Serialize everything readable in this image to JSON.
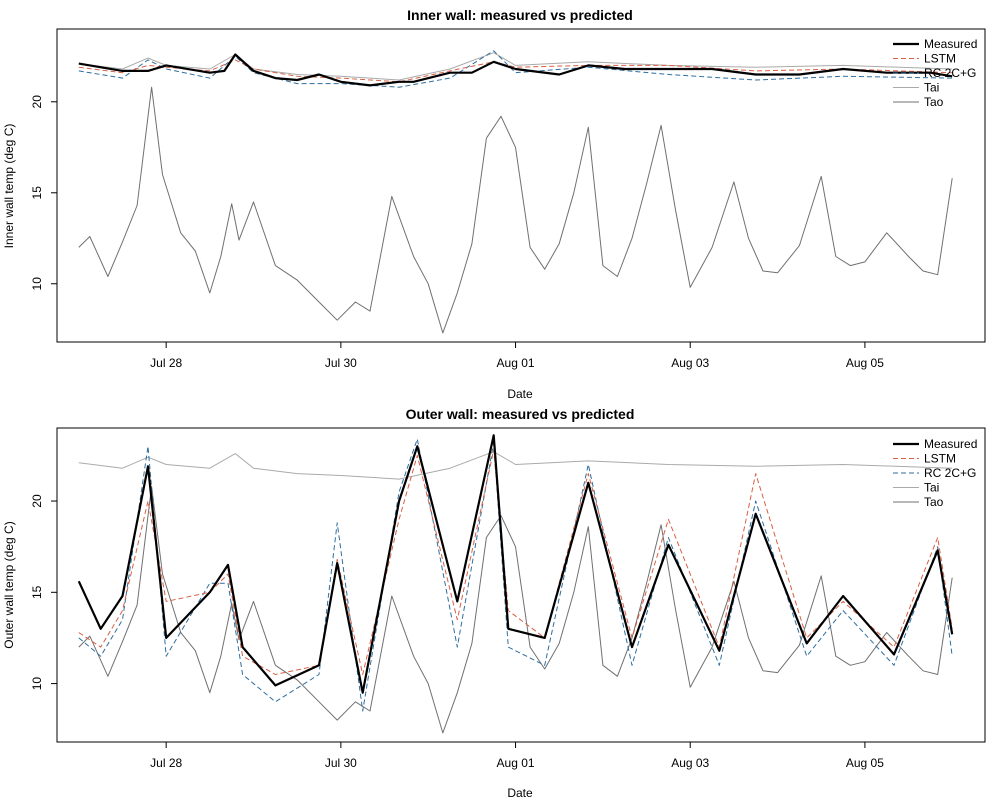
{
  "chart_data": [
    {
      "type": "line",
      "title": "Inner wall: measured vs predicted",
      "xlabel": "Date",
      "ylabel": "Inner wall temp (deg C)",
      "xlim": [
        "2019-07-26T18:00",
        "2019-08-06T09:00"
      ],
      "ylim": [
        6.8,
        24.0
      ],
      "yticks": [
        10,
        15,
        20
      ],
      "xticks": [
        {
          "date": "2019-07-28",
          "label": "Jul 28"
        },
        {
          "date": "2019-07-30",
          "label": "Jul 30"
        },
        {
          "date": "2019-08-01",
          "label": "Aug 01"
        },
        {
          "date": "2019-08-03",
          "label": "Aug 03"
        },
        {
          "date": "2019-08-05",
          "label": "Aug 05"
        }
      ],
      "grid": false,
      "legend_position": "top-right",
      "series": [
        {
          "name": "Measured",
          "color": "#000000",
          "style": "solid-thick",
          "x": [
            "2019-07-27T00:00",
            "2019-07-27T12:00",
            "2019-07-27T19:00",
            "2019-07-28T00:00",
            "2019-07-28T12:00",
            "2019-07-28T16:00",
            "2019-07-28T19:00",
            "2019-07-29T00:00",
            "2019-07-29T06:00",
            "2019-07-29T12:00",
            "2019-07-29T18:00",
            "2019-07-30T00:00",
            "2019-07-30T08:00",
            "2019-07-30T16:00",
            "2019-07-30T20:00",
            "2019-07-31T06:00",
            "2019-07-31T12:00",
            "2019-07-31T18:00",
            "2019-08-01T00:00",
            "2019-08-01T12:00",
            "2019-08-01T20:00",
            "2019-08-02T06:00",
            "2019-08-02T18:00",
            "2019-08-03T06:00",
            "2019-08-03T18:00",
            "2019-08-04T06:00",
            "2019-08-04T18:00",
            "2019-08-05T06:00",
            "2019-08-05T18:00",
            "2019-08-06T00:00"
          ],
          "y": [
            22.1,
            21.7,
            21.7,
            22.0,
            21.6,
            21.7,
            22.6,
            21.7,
            21.3,
            21.2,
            21.5,
            21.1,
            20.9,
            21.1,
            21.1,
            21.6,
            21.6,
            22.2,
            21.8,
            21.5,
            22.0,
            21.8,
            21.8,
            21.8,
            21.5,
            21.5,
            21.8,
            21.6,
            21.6,
            21.4
          ]
        },
        {
          "name": "LSTM",
          "color": "#D95F43",
          "style": "dashed",
          "x": [
            "2019-07-27T00:00",
            "2019-07-27T12:00",
            "2019-07-27T19:00",
            "2019-07-28T00:00",
            "2019-07-28T12:00",
            "2019-07-28T19:00",
            "2019-07-29T00:00",
            "2019-07-29T12:00",
            "2019-07-30T00:00",
            "2019-07-30T16:00",
            "2019-07-31T06:00",
            "2019-07-31T18:00",
            "2019-08-01T00:00",
            "2019-08-01T20:00",
            "2019-08-02T18:00",
            "2019-08-03T18:00",
            "2019-08-04T18:00",
            "2019-08-06T00:00"
          ],
          "y": [
            21.9,
            21.6,
            22.0,
            21.9,
            21.7,
            22.3,
            21.8,
            21.4,
            21.3,
            21.1,
            21.7,
            22.2,
            21.9,
            22.0,
            22.0,
            21.7,
            21.8,
            21.6
          ]
        },
        {
          "name": "RC 2C+G",
          "color": "#2E6E9E",
          "style": "dashed",
          "x": [
            "2019-07-27T00:00",
            "2019-07-27T12:00",
            "2019-07-27T19:00",
            "2019-07-28T00:00",
            "2019-07-28T12:00",
            "2019-07-28T19:00",
            "2019-07-29T00:00",
            "2019-07-29T12:00",
            "2019-07-30T00:00",
            "2019-07-30T16:00",
            "2019-07-31T06:00",
            "2019-07-31T18:00",
            "2019-08-01T00:00",
            "2019-08-01T20:00",
            "2019-08-02T18:00",
            "2019-08-03T18:00",
            "2019-08-04T18:00",
            "2019-08-06T00:00"
          ],
          "y": [
            21.7,
            21.3,
            22.3,
            21.8,
            21.3,
            22.5,
            21.6,
            21.0,
            21.0,
            20.8,
            21.3,
            22.8,
            21.6,
            21.9,
            21.5,
            21.2,
            21.4,
            21.3
          ]
        },
        {
          "name": "Tai",
          "color": "#AAAAAA",
          "style": "solid",
          "x": [
            "2019-07-27T00:00",
            "2019-07-27T12:00",
            "2019-07-27T19:00",
            "2019-07-28T00:00",
            "2019-07-28T12:00",
            "2019-07-28T19:00",
            "2019-07-29T00:00",
            "2019-07-29T12:00",
            "2019-07-30T00:00",
            "2019-07-30T16:00",
            "2019-07-31T06:00",
            "2019-07-31T18:00",
            "2019-08-01T00:00",
            "2019-08-01T20:00",
            "2019-08-02T18:00",
            "2019-08-03T18:00",
            "2019-08-04T18:00",
            "2019-08-06T00:00"
          ],
          "y": [
            22.1,
            21.8,
            22.4,
            22.0,
            21.8,
            22.6,
            21.8,
            21.5,
            21.4,
            21.2,
            21.8,
            22.7,
            22.0,
            22.2,
            22.0,
            21.9,
            22.0,
            21.8
          ]
        },
        {
          "name": "Tao",
          "color": "#707070",
          "style": "solid",
          "x": [
            "2019-07-27T00:00",
            "2019-07-27T03:00",
            "2019-07-27T08:00",
            "2019-07-27T12:00",
            "2019-07-27T16:00",
            "2019-07-27T20:00",
            "2019-07-27T23:00",
            "2019-07-28T04:00",
            "2019-07-28T08:00",
            "2019-07-28T12:00",
            "2019-07-28T15:00",
            "2019-07-28T18:00",
            "2019-07-28T20:00",
            "2019-07-29T00:00",
            "2019-07-29T06:00",
            "2019-07-29T12:00",
            "2019-07-29T18:00",
            "2019-07-29T23:00",
            "2019-07-30T04:00",
            "2019-07-30T08:00",
            "2019-07-30T14:00",
            "2019-07-30T20:00",
            "2019-07-31T00:00",
            "2019-07-31T04:00",
            "2019-07-31T08:00",
            "2019-07-31T12:00",
            "2019-07-31T16:00",
            "2019-07-31T20:00",
            "2019-08-01T00:00",
            "2019-08-01T04:00",
            "2019-08-01T08:00",
            "2019-08-01T12:00",
            "2019-08-01T16:00",
            "2019-08-01T20:00",
            "2019-08-02T00:00",
            "2019-08-02T04:00",
            "2019-08-02T08:00",
            "2019-08-02T12:00",
            "2019-08-02T16:00",
            "2019-08-02T20:00",
            "2019-08-03T00:00",
            "2019-08-03T06:00",
            "2019-08-03T12:00",
            "2019-08-03T16:00",
            "2019-08-03T20:00",
            "2019-08-04T00:00",
            "2019-08-04T06:00",
            "2019-08-04T12:00",
            "2019-08-04T16:00",
            "2019-08-04T20:00",
            "2019-08-05T00:00",
            "2019-08-05T06:00",
            "2019-08-05T12:00",
            "2019-08-05T16:00",
            "2019-08-05T20:00",
            "2019-08-06T00:00"
          ],
          "y": [
            12.0,
            12.6,
            10.4,
            12.3,
            14.3,
            20.8,
            16.0,
            12.8,
            11.8,
            9.5,
            11.5,
            14.4,
            12.4,
            14.5,
            11.0,
            10.2,
            9.0,
            8.0,
            9.0,
            8.5,
            14.8,
            11.5,
            10.0,
            7.3,
            9.5,
            12.2,
            18.0,
            19.2,
            17.5,
            12.0,
            10.8,
            12.2,
            15.0,
            18.6,
            11.0,
            10.4,
            12.5,
            15.5,
            18.7,
            14.0,
            9.8,
            12.0,
            15.6,
            12.5,
            10.7,
            10.6,
            12.1,
            15.9,
            11.5,
            11.0,
            11.2,
            12.8,
            11.5,
            10.7,
            10.5,
            15.8
          ]
        }
      ]
    },
    {
      "type": "line",
      "title": "Outer wall: measured vs predicted",
      "xlabel": "Date",
      "ylabel": "Outer wall temp (deg C)",
      "xlim": [
        "2019-07-26T18:00",
        "2019-08-06T09:00"
      ],
      "ylim": [
        6.8,
        24.0
      ],
      "yticks": [
        10,
        15,
        20
      ],
      "xticks": [
        {
          "date": "2019-07-28",
          "label": "Jul 28"
        },
        {
          "date": "2019-07-30",
          "label": "Jul 30"
        },
        {
          "date": "2019-08-01",
          "label": "Aug 01"
        },
        {
          "date": "2019-08-03",
          "label": "Aug 03"
        },
        {
          "date": "2019-08-05",
          "label": "Aug 05"
        }
      ],
      "grid": false,
      "legend_position": "top-right",
      "series": [
        {
          "name": "Measured",
          "color": "#000000",
          "style": "solid-thick",
          "x": [
            "2019-07-27T00:00",
            "2019-07-27T06:00",
            "2019-07-27T12:00",
            "2019-07-27T19:00",
            "2019-07-28T00:00",
            "2019-07-28T12:00",
            "2019-07-28T17:00",
            "2019-07-28T21:00",
            "2019-07-29T06:00",
            "2019-07-29T18:00",
            "2019-07-29T23:00",
            "2019-07-30T06:00",
            "2019-07-30T16:00",
            "2019-07-30T21:00",
            "2019-07-31T08:00",
            "2019-07-31T18:00",
            "2019-07-31T22:00",
            "2019-08-01T08:00",
            "2019-08-01T20:00",
            "2019-08-02T08:00",
            "2019-08-02T18:00",
            "2019-08-03T08:00",
            "2019-08-03T18:00",
            "2019-08-04T08:00",
            "2019-08-04T18:00",
            "2019-08-05T08:00",
            "2019-08-05T20:00",
            "2019-08-06T00:00"
          ],
          "y": [
            15.6,
            13.0,
            14.8,
            21.9,
            12.5,
            15.0,
            16.5,
            12.0,
            9.9,
            11.0,
            16.6,
            9.5,
            20.0,
            23.0,
            14.5,
            23.6,
            13.0,
            12.5,
            21.0,
            12.0,
            17.6,
            11.8,
            19.3,
            12.2,
            14.8,
            11.6,
            17.3,
            12.7
          ]
        },
        {
          "name": "LSTM",
          "color": "#D95F43",
          "style": "dashed",
          "x": [
            "2019-07-27T00:00",
            "2019-07-27T06:00",
            "2019-07-27T12:00",
            "2019-07-27T19:00",
            "2019-07-28T00:00",
            "2019-07-28T12:00",
            "2019-07-28T17:00",
            "2019-07-28T21:00",
            "2019-07-29T06:00",
            "2019-07-29T18:00",
            "2019-07-29T23:00",
            "2019-07-30T06:00",
            "2019-07-30T16:00",
            "2019-07-30T21:00",
            "2019-07-31T08:00",
            "2019-07-31T18:00",
            "2019-07-31T22:00",
            "2019-08-01T08:00",
            "2019-08-01T20:00",
            "2019-08-02T08:00",
            "2019-08-02T18:00",
            "2019-08-03T08:00",
            "2019-08-03T18:00",
            "2019-08-04T08:00",
            "2019-08-04T18:00",
            "2019-08-05T08:00",
            "2019-08-05T20:00",
            "2019-08-06T00:00"
          ],
          "y": [
            12.8,
            12.0,
            14.0,
            20.0,
            14.5,
            15.0,
            16.0,
            11.5,
            10.5,
            11.0,
            16.8,
            10.5,
            19.0,
            22.5,
            13.5,
            22.8,
            14.0,
            12.5,
            21.5,
            12.5,
            19.0,
            12.0,
            21.5,
            12.5,
            14.5,
            12.0,
            18.0,
            13.0
          ]
        },
        {
          "name": "RC 2C+G",
          "color": "#2E6E9E",
          "style": "dashed",
          "x": [
            "2019-07-27T00:00",
            "2019-07-27T06:00",
            "2019-07-27T12:00",
            "2019-07-27T19:00",
            "2019-07-28T00:00",
            "2019-07-28T12:00",
            "2019-07-28T17:00",
            "2019-07-28T21:00",
            "2019-07-29T06:00",
            "2019-07-29T18:00",
            "2019-07-29T23:00",
            "2019-07-30T06:00",
            "2019-07-30T16:00",
            "2019-07-30T21:00",
            "2019-07-31T08:00",
            "2019-07-31T18:00",
            "2019-07-31T22:00",
            "2019-08-01T08:00",
            "2019-08-01T20:00",
            "2019-08-02T08:00",
            "2019-08-02T18:00",
            "2019-08-03T08:00",
            "2019-08-03T18:00",
            "2019-08-04T08:00",
            "2019-08-04T18:00",
            "2019-08-05T08:00",
            "2019-08-05T20:00",
            "2019-08-06T00:00"
          ],
          "y": [
            12.5,
            11.5,
            13.5,
            23.0,
            11.5,
            15.5,
            15.5,
            10.5,
            9.0,
            10.5,
            18.8,
            8.5,
            20.5,
            23.4,
            12.0,
            23.2,
            12.0,
            11.0,
            22.0,
            11.0,
            18.0,
            11.0,
            20.0,
            11.5,
            14.0,
            11.0,
            17.5,
            11.5
          ]
        },
        {
          "name": "Tai",
          "color": "#AAAAAA",
          "style": "solid",
          "x": [
            "2019-07-27T00:00",
            "2019-07-27T12:00",
            "2019-07-27T19:00",
            "2019-07-28T00:00",
            "2019-07-28T12:00",
            "2019-07-28T19:00",
            "2019-07-29T00:00",
            "2019-07-29T12:00",
            "2019-07-30T00:00",
            "2019-07-30T16:00",
            "2019-07-31T06:00",
            "2019-07-31T18:00",
            "2019-08-01T00:00",
            "2019-08-01T20:00",
            "2019-08-02T18:00",
            "2019-08-03T18:00",
            "2019-08-04T18:00",
            "2019-08-06T00:00"
          ],
          "y": [
            22.1,
            21.8,
            22.4,
            22.0,
            21.8,
            22.6,
            21.8,
            21.5,
            21.4,
            21.2,
            21.8,
            22.7,
            22.0,
            22.2,
            22.0,
            21.9,
            22.0,
            21.8
          ]
        },
        {
          "name": "Tao",
          "color": "#707070",
          "style": "solid",
          "x": [
            "2019-07-27T00:00",
            "2019-07-27T03:00",
            "2019-07-27T08:00",
            "2019-07-27T12:00",
            "2019-07-27T16:00",
            "2019-07-27T20:00",
            "2019-07-27T23:00",
            "2019-07-28T04:00",
            "2019-07-28T08:00",
            "2019-07-28T12:00",
            "2019-07-28T15:00",
            "2019-07-28T18:00",
            "2019-07-28T20:00",
            "2019-07-29T00:00",
            "2019-07-29T06:00",
            "2019-07-29T12:00",
            "2019-07-29T18:00",
            "2019-07-29T23:00",
            "2019-07-30T04:00",
            "2019-07-30T08:00",
            "2019-07-30T14:00",
            "2019-07-30T20:00",
            "2019-07-31T00:00",
            "2019-07-31T04:00",
            "2019-07-31T08:00",
            "2019-07-31T12:00",
            "2019-07-31T16:00",
            "2019-07-31T20:00",
            "2019-08-01T00:00",
            "2019-08-01T04:00",
            "2019-08-01T08:00",
            "2019-08-01T12:00",
            "2019-08-01T16:00",
            "2019-08-01T20:00",
            "2019-08-02T00:00",
            "2019-08-02T04:00",
            "2019-08-02T08:00",
            "2019-08-02T12:00",
            "2019-08-02T16:00",
            "2019-08-02T20:00",
            "2019-08-03T00:00",
            "2019-08-03T06:00",
            "2019-08-03T12:00",
            "2019-08-03T16:00",
            "2019-08-03T20:00",
            "2019-08-04T00:00",
            "2019-08-04T06:00",
            "2019-08-04T12:00",
            "2019-08-04T16:00",
            "2019-08-04T20:00",
            "2019-08-05T00:00",
            "2019-08-05T06:00",
            "2019-08-05T12:00",
            "2019-08-05T16:00",
            "2019-08-05T20:00",
            "2019-08-06T00:00"
          ],
          "y": [
            12.0,
            12.6,
            10.4,
            12.3,
            14.3,
            20.8,
            16.0,
            12.8,
            11.8,
            9.5,
            11.5,
            14.4,
            12.4,
            14.5,
            11.0,
            10.2,
            9.0,
            8.0,
            9.0,
            8.5,
            14.8,
            11.5,
            10.0,
            7.3,
            9.5,
            12.2,
            18.0,
            19.2,
            17.5,
            12.0,
            10.8,
            12.2,
            15.0,
            18.6,
            11.0,
            10.4,
            12.5,
            15.5,
            18.7,
            14.0,
            9.8,
            12.0,
            15.6,
            12.5,
            10.7,
            10.6,
            12.1,
            15.9,
            11.5,
            11.0,
            11.2,
            12.8,
            11.5,
            10.7,
            10.5,
            15.8
          ]
        }
      ]
    }
  ]
}
